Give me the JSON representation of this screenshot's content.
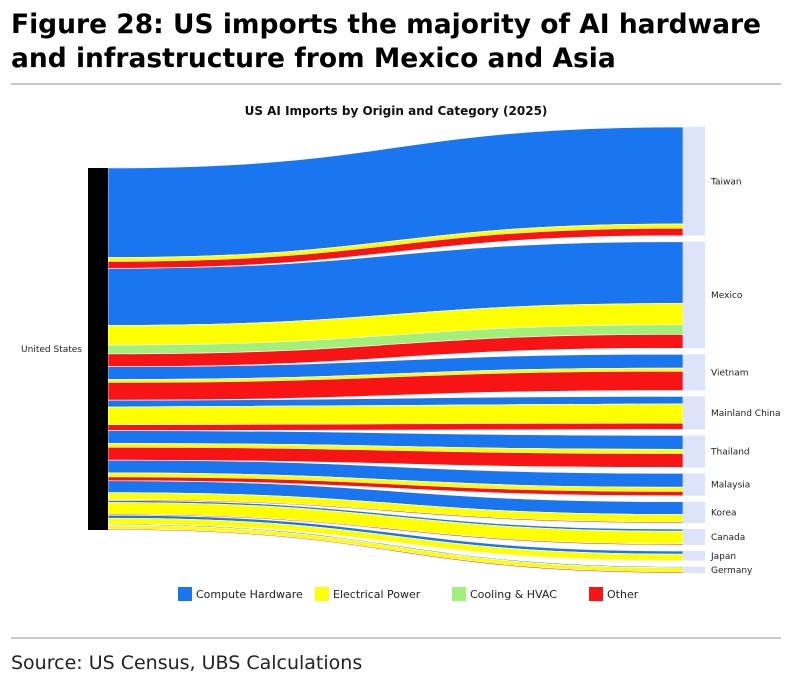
{
  "figure": {
    "title": "Figure 28: US imports the majority of AI hardware and infrastructure from Mexico and Asia",
    "source": "Source: US Census, UBS Calculations"
  },
  "chart_data": {
    "type": "sankey",
    "title": "US AI Imports by Origin and Category (2025)",
    "source_node": "United States",
    "categories": [
      "Compute Hardware",
      "Electrical Power",
      "Cooling & HVAC",
      "Other"
    ],
    "colors": {
      "Compute Hardware": "#1a75f0",
      "Electrical Power": "#ffff00",
      "Cooling & HVAC": "#a0f07a",
      "Other": "#f81414",
      "source_node": "#000000",
      "target_node": "#dde3fa"
    },
    "flows": [
      {
        "origin": "Taiwan",
        "values": {
          "Compute Hardware": 91,
          "Electrical Power": 4,
          "Cooling & HVAC": 0,
          "Other": 7
        }
      },
      {
        "origin": "Mexico",
        "values": {
          "Compute Hardware": 58,
          "Electrical Power": 20,
          "Cooling & HVAC": 9,
          "Other": 13
        }
      },
      {
        "origin": "Vietnam",
        "values": {
          "Compute Hardware": 13,
          "Electrical Power": 3,
          "Cooling & HVAC": 0,
          "Other": 18
        }
      },
      {
        "origin": "Mainland China",
        "values": {
          "Compute Hardware": 7,
          "Electrical Power": 18,
          "Cooling & HVAC": 0,
          "Other": 6
        }
      },
      {
        "origin": "Thailand",
        "values": {
          "Compute Hardware": 13,
          "Electrical Power": 4,
          "Cooling & HVAC": 0,
          "Other": 13
        }
      },
      {
        "origin": "Malaysia",
        "values": {
          "Compute Hardware": 13,
          "Electrical Power": 4,
          "Cooling & HVAC": 0,
          "Other": 4
        }
      },
      {
        "origin": "Korea",
        "values": {
          "Compute Hardware": 12,
          "Electrical Power": 7,
          "Cooling & HVAC": 0,
          "Other": 1
        }
      },
      {
        "origin": "Canada",
        "values": {
          "Compute Hardware": 2,
          "Electrical Power": 12,
          "Cooling & HVAC": 0,
          "Other": 1
        }
      },
      {
        "origin": "Japan",
        "values": {
          "Compute Hardware": 3,
          "Electrical Power": 6,
          "Cooling & HVAC": 0,
          "Other": 0
        }
      },
      {
        "origin": "Germany",
        "values": {
          "Compute Hardware": 1,
          "Electrical Power": 4,
          "Cooling & HVAC": 0,
          "Other": 1
        }
      }
    ],
    "legend_position": "bottom",
    "grid": false
  }
}
